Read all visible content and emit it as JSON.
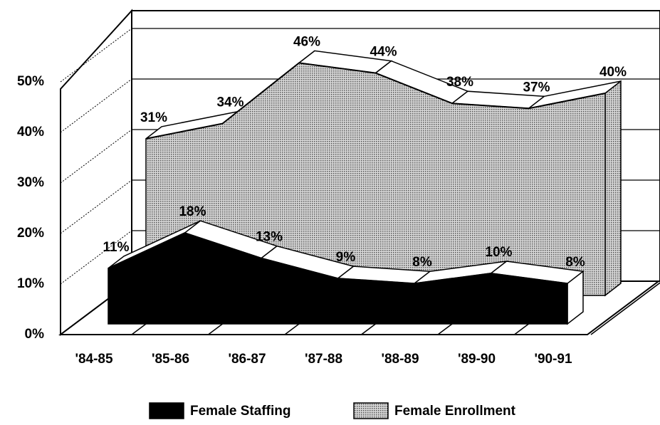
{
  "chart_data": {
    "type": "area3d",
    "categories": [
      "'84-85",
      "'85-86",
      "'86-87",
      "'87-88",
      "'88-89",
      "'89-90",
      "'90-91"
    ],
    "series": [
      {
        "name": "Female Staffing",
        "color": "#000000",
        "values": [
          11,
          18,
          13,
          9,
          8,
          10,
          8
        ],
        "value_labels": [
          "11%",
          "18%",
          "13%",
          "9%",
          "8%",
          "10%",
          "8%"
        ]
      },
      {
        "name": "Female Enrollment",
        "color": "#b0b0b0",
        "values": [
          31,
          34,
          46,
          44,
          38,
          37,
          40
        ],
        "value_labels": [
          "31%",
          "34%",
          "46%",
          "44%",
          "38%",
          "37%",
          "40%"
        ]
      }
    ],
    "ylim": [
      0,
      50
    ],
    "yticks": [
      {
        "value": 0,
        "label": "0%"
      },
      {
        "value": 10,
        "label": "10%"
      },
      {
        "value": 20,
        "label": "20%"
      },
      {
        "value": 30,
        "label": "30%"
      },
      {
        "value": 40,
        "label": "40%"
      },
      {
        "value": 50,
        "label": "50%"
      }
    ],
    "grid": true
  }
}
